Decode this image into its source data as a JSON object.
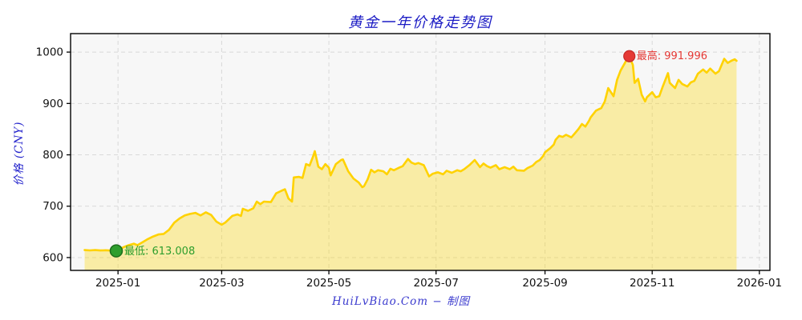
{
  "title": "黄金一年价格走势图",
  "y_axis_label": "价格 (CNY)",
  "footer": "HuiLvBiao.Com − 制图",
  "colors": {
    "title_blue": "#1a1ac4",
    "axis_label_blue": "#2424cc",
    "footer_blue": "#3a3ace",
    "line_gold": "#ffd200",
    "fill_gold": "rgba(255,215,0,0.33)",
    "plot_bg": "#f7f7f7",
    "grid": "#d9d9d9",
    "tick_text": "#111111",
    "min_green": "#2e9e2e",
    "min_green_edge": "#1c6e1c",
    "max_red": "#e53935",
    "max_red_edge": "#c62828"
  },
  "chart_data": {
    "type": "area",
    "title": "黄金一年价格走势图",
    "xlabel": "",
    "ylabel": "价格 (CNY)",
    "grid": true,
    "x_tick_labels": [
      "2025-01",
      "2025-03",
      "2025-05",
      "2025-07",
      "2025-09",
      "2025-11",
      "2026-01"
    ],
    "x_tick_days": [
      19,
      78,
      139,
      200,
      262,
      323,
      384
    ],
    "y_ticks": [
      600,
      700,
      800,
      900,
      1000
    ],
    "x_domain_days": [
      -8,
      390
    ],
    "y_domain": [
      575,
      1036
    ],
    "series_name": "gold-price-cny-per-gram-1y",
    "x_unit": "days since 2024-12-13",
    "points": [
      [
        0,
        614.5
      ],
      [
        3,
        613.9
      ],
      [
        6,
        614.6
      ],
      [
        9,
        613.8
      ],
      [
        12,
        614.3
      ],
      [
        15,
        613.6
      ],
      [
        18,
        613.008
      ],
      [
        20,
        616
      ],
      [
        22,
        620
      ],
      [
        25,
        624
      ],
      [
        28,
        627
      ],
      [
        30,
        624
      ],
      [
        33,
        630
      ],
      [
        36,
        636
      ],
      [
        39,
        641
      ],
      [
        42,
        645
      ],
      [
        45,
        646
      ],
      [
        48,
        654
      ],
      [
        51,
        668
      ],
      [
        54,
        676
      ],
      [
        57,
        682
      ],
      [
        60,
        685
      ],
      [
        63,
        687
      ],
      [
        66,
        682
      ],
      [
        69,
        688
      ],
      [
        72,
        683
      ],
      [
        75,
        670
      ],
      [
        78,
        664
      ],
      [
        80,
        668
      ],
      [
        84,
        681
      ],
      [
        87,
        684
      ],
      [
        89,
        681
      ],
      [
        90,
        695
      ],
      [
        93,
        691
      ],
      [
        96,
        696
      ],
      [
        98,
        709
      ],
      [
        100,
        704
      ],
      [
        102,
        709
      ],
      [
        106,
        708
      ],
      [
        109,
        725
      ],
      [
        112,
        730
      ],
      [
        114,
        733
      ],
      [
        116,
        715
      ],
      [
        118,
        709
      ],
      [
        119,
        756
      ],
      [
        122,
        757
      ],
      [
        124,
        755
      ],
      [
        126,
        782
      ],
      [
        128,
        779
      ],
      [
        130,
        797
      ],
      [
        131,
        807
      ],
      [
        133,
        777
      ],
      [
        135,
        772
      ],
      [
        137,
        782
      ],
      [
        139,
        775
      ],
      [
        140,
        760
      ],
      [
        143,
        782
      ],
      [
        146,
        790
      ],
      [
        147,
        791
      ],
      [
        150,
        768
      ],
      [
        153,
        754
      ],
      [
        156,
        746
      ],
      [
        158,
        737
      ],
      [
        159,
        739
      ],
      [
        161,
        752
      ],
      [
        163,
        771
      ],
      [
        165,
        766
      ],
      [
        167,
        770
      ],
      [
        170,
        768
      ],
      [
        172,
        762
      ],
      [
        174,
        773
      ],
      [
        176,
        770
      ],
      [
        179,
        775
      ],
      [
        181,
        778
      ],
      [
        184,
        792
      ],
      [
        186,
        785
      ],
      [
        188,
        782
      ],
      [
        190,
        784
      ],
      [
        193,
        780
      ],
      [
        196,
        758
      ],
      [
        198,
        763
      ],
      [
        201,
        766
      ],
      [
        204,
        762
      ],
      [
        206,
        769
      ],
      [
        209,
        765
      ],
      [
        212,
        770
      ],
      [
        214,
        768
      ],
      [
        216,
        772
      ],
      [
        219,
        780
      ],
      [
        222,
        790
      ],
      [
        225,
        776
      ],
      [
        227,
        783
      ],
      [
        229,
        778
      ],
      [
        231,
        775
      ],
      [
        234,
        780
      ],
      [
        236,
        772
      ],
      [
        239,
        776
      ],
      [
        242,
        772
      ],
      [
        244,
        777
      ],
      [
        246,
        770
      ],
      [
        250,
        769
      ],
      [
        252,
        774
      ],
      [
        255,
        779
      ],
      [
        257,
        786
      ],
      [
        259,
        790
      ],
      [
        261,
        798
      ],
      [
        262,
        805
      ],
      [
        265,
        813
      ],
      [
        267,
        820
      ],
      [
        268,
        829
      ],
      [
        270,
        837
      ],
      [
        272,
        835
      ],
      [
        274,
        839
      ],
      [
        277,
        834
      ],
      [
        279,
        842
      ],
      [
        281,
        850
      ],
      [
        283,
        860
      ],
      [
        285,
        855
      ],
      [
        287,
        866
      ],
      [
        288,
        873
      ],
      [
        291,
        886
      ],
      [
        294,
        891
      ],
      [
        296,
        904
      ],
      [
        298,
        930
      ],
      [
        301,
        914
      ],
      [
        303,
        946
      ],
      [
        305,
        964
      ],
      [
        308,
        982
      ],
      [
        310,
        991.996
      ],
      [
        312,
        975
      ],
      [
        313,
        940
      ],
      [
        315,
        948
      ],
      [
        317,
        917
      ],
      [
        319,
        904
      ],
      [
        320,
        912
      ],
      [
        323,
        922
      ],
      [
        325,
        912
      ],
      [
        327,
        914
      ],
      [
        329,
        933
      ],
      [
        332,
        959
      ],
      [
        333,
        940
      ],
      [
        336,
        930
      ],
      [
        338,
        946
      ],
      [
        340,
        938
      ],
      [
        343,
        933
      ],
      [
        345,
        941
      ],
      [
        347,
        944
      ],
      [
        349,
        958
      ],
      [
        352,
        966
      ],
      [
        354,
        960
      ],
      [
        356,
        968
      ],
      [
        359,
        958
      ],
      [
        361,
        963
      ],
      [
        364,
        987
      ],
      [
        366,
        979
      ],
      [
        368,
        983
      ],
      [
        370,
        986
      ],
      [
        371,
        983
      ]
    ],
    "annotations": {
      "min": {
        "label": "最低: 613.008",
        "day": 18,
        "value": 613.008
      },
      "max": {
        "label": "最高: 991.996",
        "day": 310,
        "value": 991.996
      }
    }
  }
}
